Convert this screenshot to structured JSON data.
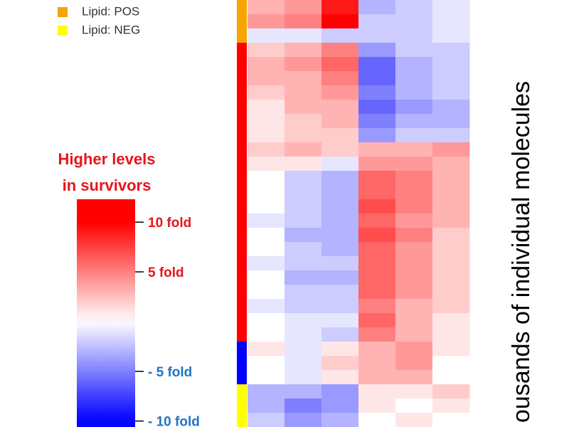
{
  "chart_data": {
    "type": "heatmap",
    "legend": [
      {
        "name": "Lipid: POS",
        "color": "#f7a400"
      },
      {
        "name": "Lipid: NEG",
        "color": "#ffff00"
      }
    ],
    "colorbar_title": [
      "Higher levels",
      "in survivors"
    ],
    "side_label": "ousands of individual molecules",
    "high_color": "#ff0000",
    "low_color": "#0000ff",
    "positive_label_color": "#e8141c",
    "negative_label_color": "#1f73c4",
    "zlim": [
      -10.6,
      12.3
    ],
    "zticks": [
      {
        "value": 10,
        "label": "10 fold"
      },
      {
        "value": 5,
        "label": "5 fold"
      },
      {
        "value": -5,
        "label": "- 5 fold"
      },
      {
        "value": -10,
        "label": "- 10 fold"
      }
    ],
    "row_colors": [
      "#f7a400",
      "#f7a400",
      "#f7a400",
      "#ff0000",
      "#ff0000",
      "#ff0000",
      "#ff0000",
      "#ff0000",
      "#ff0000",
      "#ff0000",
      "#ff0000",
      "#ff0000",
      "#ff0000",
      "#ff0000",
      "#ff0000",
      "#ff0000",
      "#ff0000",
      "#ff0000",
      "#ff0000",
      "#ff0000",
      "#ff0000",
      "#ff0000",
      "#ff0000",
      "#ff0000",
      "#0000ff",
      "#0000ff",
      "#0000ff",
      "#ffff00",
      "#ffff00",
      "#ffff00"
    ],
    "z": [
      [
        3,
        4,
        9,
        -3,
        -2,
        -1
      ],
      [
        4,
        5,
        10,
        -2,
        -2,
        -1
      ],
      [
        -1,
        -1,
        -2,
        -2,
        -2,
        -1
      ],
      [
        2,
        3,
        5,
        -4,
        -2,
        -2
      ],
      [
        3,
        4,
        6,
        -6,
        -3,
        -2
      ],
      [
        3,
        3,
        5,
        -6,
        -3,
        -2
      ],
      [
        2,
        3,
        4,
        -5,
        -3,
        -2
      ],
      [
        1,
        3,
        3,
        -6,
        -4,
        -3
      ],
      [
        1,
        2,
        3,
        -5,
        -3,
        -3
      ],
      [
        1,
        2,
        2,
        -4,
        -2,
        -2
      ],
      [
        2,
        3,
        2,
        3,
        3,
        4
      ],
      [
        1,
        1,
        -1,
        4,
        4,
        3
      ],
      [
        0,
        -2,
        -3,
        6,
        5,
        3
      ],
      [
        0,
        -2,
        -3,
        6,
        5,
        3
      ],
      [
        0,
        -2,
        -3,
        7,
        5,
        3
      ],
      [
        -1,
        -2,
        -3,
        6,
        4,
        3
      ],
      [
        0,
        -3,
        -3,
        7,
        5,
        2
      ],
      [
        0,
        -2,
        -3,
        6,
        4,
        2
      ],
      [
        -1,
        -2,
        -2,
        6,
        4,
        2
      ],
      [
        0,
        -3,
        -3,
        6,
        4,
        2
      ],
      [
        0,
        -2,
        -2,
        6,
        4,
        2
      ],
      [
        -1,
        -2,
        -2,
        5,
        3,
        2
      ],
      [
        0,
        -1,
        -1,
        6,
        3,
        1
      ],
      [
        0,
        -1,
        -2,
        5,
        3,
        1
      ],
      [
        1,
        -1,
        1,
        3,
        4,
        1
      ],
      [
        0,
        -1,
        2,
        3,
        4,
        0
      ],
      [
        0,
        -1,
        1,
        3,
        3,
        0
      ],
      [
        -3,
        -3,
        -4,
        1,
        1,
        2
      ],
      [
        -3,
        -5,
        -4,
        1,
        0,
        1
      ],
      [
        -2,
        -4,
        -3,
        0,
        1,
        0
      ]
    ]
  }
}
